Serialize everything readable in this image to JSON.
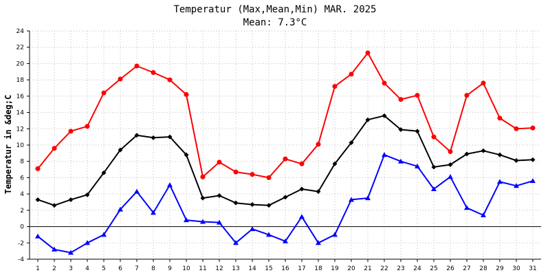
{
  "chart_data": {
    "type": "line",
    "title": "Temperatur (Max,Mean,Min) MAR. 2025",
    "subtitle": "Mean: 7.3°C",
    "xlabel": "",
    "ylabel": "Temperatur in &deg;C",
    "ylim": [
      -4,
      24
    ],
    "yticks": [
      -4,
      -2,
      0,
      2,
      4,
      6,
      8,
      10,
      12,
      14,
      16,
      18,
      20,
      22,
      24
    ],
    "x": [
      1,
      2,
      3,
      4,
      5,
      6,
      7,
      8,
      9,
      10,
      11,
      12,
      13,
      14,
      15,
      16,
      17,
      18,
      19,
      20,
      21,
      22,
      23,
      24,
      25,
      26,
      27,
      28,
      29,
      30,
      31
    ],
    "grid": true,
    "legend": "none",
    "series": [
      {
        "key": "max",
        "color": "#ff0000",
        "marker": "circle",
        "values": [
          7.1,
          9.6,
          11.7,
          12.3,
          16.4,
          18.1,
          19.7,
          18.9,
          18.0,
          16.2,
          6.1,
          7.9,
          6.7,
          6.4,
          6.0,
          8.3,
          7.7,
          10.1,
          17.2,
          18.7,
          21.3,
          17.6,
          15.6,
          16.1,
          11.0,
          9.2,
          16.1,
          17.6,
          13.3,
          12.0,
          12.1
        ]
      },
      {
        "key": "mean",
        "color": "#000000",
        "marker": "diamond",
        "values": [
          3.3,
          2.6,
          3.3,
          3.9,
          6.6,
          9.4,
          11.2,
          10.9,
          11.0,
          8.8,
          3.5,
          3.8,
          2.9,
          2.7,
          2.6,
          3.6,
          4.6,
          4.3,
          7.7,
          10.3,
          13.1,
          13.6,
          11.9,
          11.7,
          7.3,
          7.6,
          8.9,
          9.3,
          8.8,
          8.1,
          8.2
        ]
      },
      {
        "key": "min",
        "color": "#0000ff",
        "marker": "triangle",
        "values": [
          -1.2,
          -2.8,
          -3.2,
          -2.0,
          -1.0,
          2.1,
          4.3,
          1.7,
          5.1,
          0.8,
          0.6,
          0.5,
          -2.0,
          -0.3,
          -1.0,
          -1.8,
          1.2,
          -2.0,
          -1.0,
          3.3,
          3.5,
          8.8,
          8.0,
          7.4,
          4.6,
          6.1,
          2.3,
          1.4,
          5.5,
          5.0,
          5.6
        ]
      }
    ]
  }
}
